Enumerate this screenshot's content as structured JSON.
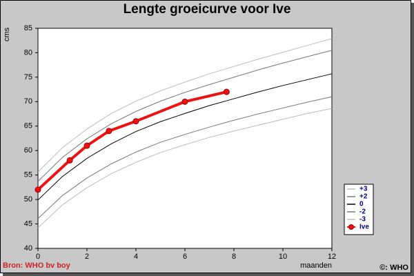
{
  "chart_data": {
    "type": "line",
    "title": "Lengte groeicurve voor Ive",
    "y_label": "cms",
    "x_label": "maanden",
    "source": "Bron: WHO bv boy",
    "copyright": "©: WHO",
    "xlim": [
      0,
      12
    ],
    "xticks": [
      0,
      2,
      4,
      6,
      8,
      10,
      12
    ],
    "ylim": [
      40,
      85
    ],
    "yticks": [
      40,
      45,
      50,
      55,
      60,
      65,
      70,
      75,
      80,
      85
    ],
    "series": [
      {
        "name": "+3",
        "color": "#bbbbbb",
        "x": [
          0,
          1,
          2,
          3,
          4,
          5,
          6,
          7,
          8,
          9,
          10,
          11,
          12
        ],
        "values": [
          55.6,
          60.6,
          64.4,
          67.6,
          70.1,
          72.2,
          74.0,
          75.7,
          77.2,
          78.7,
          80.1,
          81.5,
          82.9
        ]
      },
      {
        "name": "+2",
        "color": "#777777",
        "x": [
          0,
          1,
          2,
          3,
          4,
          5,
          6,
          7,
          8,
          9,
          10,
          11,
          12
        ],
        "values": [
          53.7,
          58.6,
          62.4,
          65.5,
          68.0,
          70.1,
          71.9,
          73.5,
          75.0,
          76.5,
          77.9,
          79.2,
          80.5
        ]
      },
      {
        "name": "0",
        "color": "#000000",
        "x": [
          0,
          1,
          2,
          3,
          4,
          5,
          6,
          7,
          8,
          9,
          10,
          11,
          12
        ],
        "values": [
          49.9,
          54.7,
          58.4,
          61.4,
          63.9,
          65.9,
          67.6,
          69.2,
          70.6,
          72.0,
          73.3,
          74.5,
          75.7
        ]
      },
      {
        "name": "-2",
        "color": "#777777",
        "x": [
          0,
          1,
          2,
          3,
          4,
          5,
          6,
          7,
          8,
          9,
          10,
          11,
          12
        ],
        "values": [
          46.1,
          50.8,
          54.4,
          57.3,
          59.7,
          61.7,
          63.3,
          64.8,
          66.2,
          67.5,
          68.7,
          69.9,
          71.0
        ]
      },
      {
        "name": "-3",
        "color": "#bbbbbb",
        "x": [
          0,
          1,
          2,
          3,
          4,
          5,
          6,
          7,
          8,
          9,
          10,
          11,
          12
        ],
        "values": [
          44.2,
          48.9,
          52.4,
          55.3,
          57.6,
          59.6,
          61.2,
          62.7,
          64.0,
          65.2,
          66.4,
          67.6,
          68.6
        ]
      },
      {
        "name": "Ive",
        "color": "#ee1111",
        "markers": true,
        "x": [
          0,
          1.3,
          2,
          2.9,
          4,
          6,
          7.7
        ],
        "values": [
          52,
          58,
          61,
          64,
          66,
          70,
          72
        ]
      }
    ]
  }
}
